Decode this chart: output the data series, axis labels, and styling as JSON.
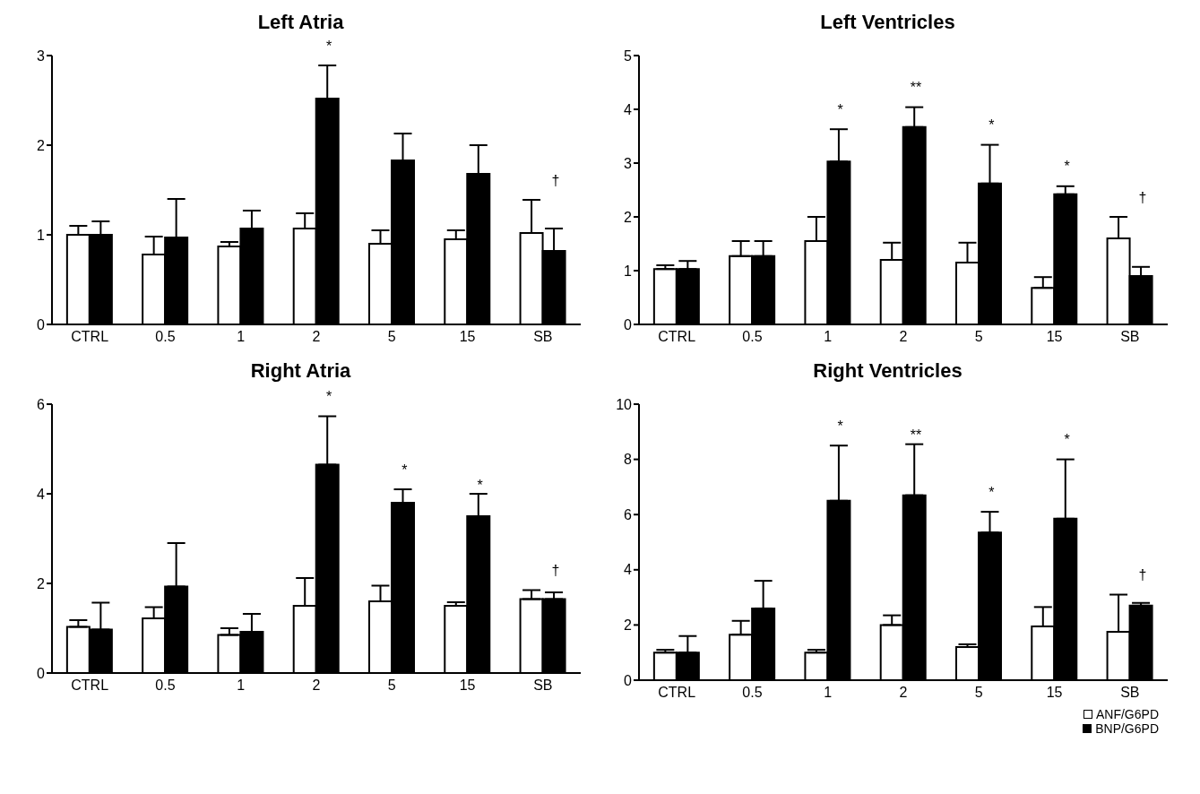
{
  "chart_data": [
    {
      "type": "bar",
      "title": "Left Atria",
      "categories": [
        "CTRL",
        "0.5",
        "1",
        "2",
        "5",
        "15",
        "SB"
      ],
      "ylim": [
        0,
        3
      ],
      "yticks": [
        0,
        1,
        2,
        3
      ],
      "grid": false,
      "series": [
        {
          "color": "#ffffff",
          "values": [
            1.0,
            0.78,
            0.87,
            1.07,
            0.9,
            0.95,
            1.02
          ],
          "errors": [
            [
              1.0,
              1.1
            ],
            [
              0.78,
              0.98
            ],
            [
              0.87,
              0.92
            ],
            [
              1.07,
              1.24
            ],
            [
              0.9,
              1.05
            ],
            [
              0.95,
              1.05
            ],
            [
              1.02,
              1.39
            ]
          ]
        },
        {
          "color": "#000000",
          "values": [
            1.0,
            0.97,
            1.07,
            2.52,
            1.83,
            1.68,
            0.82
          ],
          "errors": [
            [
              1.0,
              1.15
            ],
            [
              0.97,
              1.4
            ],
            [
              1.07,
              1.27
            ],
            [
              2.52,
              2.89
            ],
            [
              1.83,
              2.13
            ],
            [
              1.68,
              2.0
            ],
            [
              0.82,
              1.07
            ]
          ]
        }
      ],
      "annotations": [
        "*",
        "†"
      ]
    },
    {
      "type": "bar",
      "title": "Left Ventricles",
      "categories": [
        "CTRL",
        "0.5",
        "1",
        "2",
        "5",
        "15",
        "SB"
      ],
      "ylim": [
        0,
        5
      ],
      "yticks": [
        0,
        1,
        2,
        3,
        4,
        5
      ],
      "grid": false,
      "series": [
        {
          "color": "#ffffff",
          "values": [
            1.03,
            1.27,
            1.55,
            1.2,
            1.15,
            0.68,
            1.6
          ],
          "errors": [
            [
              1.03,
              1.1
            ],
            [
              1.27,
              1.55
            ],
            [
              1.55,
              2.0
            ],
            [
              1.2,
              1.52
            ],
            [
              1.15,
              1.52
            ],
            [
              0.68,
              0.88
            ],
            [
              1.6,
              2.0
            ]
          ]
        },
        {
          "color": "#000000",
          "values": [
            1.03,
            1.27,
            3.03,
            3.67,
            2.62,
            2.42,
            0.9
          ],
          "errors": [
            [
              1.03,
              1.18
            ],
            [
              1.27,
              1.55
            ],
            [
              3.03,
              3.63
            ],
            [
              3.67,
              4.04
            ],
            [
              2.62,
              3.34
            ],
            [
              2.42,
              2.57
            ],
            [
              0.9,
              1.07
            ]
          ]
        }
      ],
      "annotations": [
        "*",
        "**",
        "*",
        "*",
        "†"
      ]
    },
    {
      "type": "bar",
      "title": "Right Atria",
      "categories": [
        "CTRL",
        "0.5",
        "1",
        "2",
        "5",
        "15",
        "SB"
      ],
      "ylim": [
        0,
        6
      ],
      "yticks": [
        0,
        2,
        4,
        6
      ],
      "grid": false,
      "series": [
        {
          "color": "#ffffff",
          "values": [
            1.03,
            1.22,
            0.85,
            1.5,
            1.6,
            1.5,
            1.65
          ],
          "errors": [
            [
              1.03,
              1.18
            ],
            [
              1.22,
              1.47
            ],
            [
              0.85,
              1.0
            ],
            [
              1.5,
              2.12
            ],
            [
              1.6,
              1.95
            ],
            [
              1.5,
              1.58
            ],
            [
              1.65,
              1.85
            ]
          ]
        },
        {
          "color": "#000000",
          "values": [
            0.97,
            1.93,
            0.92,
            4.65,
            3.8,
            3.5,
            1.65
          ],
          "errors": [
            [
              0.97,
              1.57
            ],
            [
              1.93,
              2.9
            ],
            [
              0.92,
              1.32
            ],
            [
              4.65,
              5.73
            ],
            [
              3.8,
              4.1
            ],
            [
              3.5,
              4.0
            ],
            [
              1.65,
              1.8
            ]
          ]
        }
      ],
      "annotations": [
        "*",
        "*",
        "*",
        "†"
      ]
    },
    {
      "type": "bar",
      "title": "Right Ventricles",
      "categories": [
        "CTRL",
        "0.5",
        "1",
        "2",
        "5",
        "15",
        "SB"
      ],
      "ylim": [
        0,
        10
      ],
      "yticks": [
        0,
        2,
        4,
        6,
        8,
        10
      ],
      "grid": false,
      "legend": "bottom right",
      "series": [
        {
          "name": "ANF/G6PD",
          "color": "#ffffff",
          "values": [
            1.0,
            1.65,
            1.0,
            2.0,
            1.2,
            1.95,
            1.75
          ],
          "errors": [
            [
              1.0,
              1.1
            ],
            [
              1.65,
              2.15
            ],
            [
              1.0,
              1.1
            ],
            [
              2.0,
              2.35
            ],
            [
              1.2,
              1.3
            ],
            [
              1.95,
              2.65
            ],
            [
              1.75,
              3.1
            ]
          ]
        },
        {
          "name": "BNP/G6PD",
          "color": "#000000",
          "values": [
            1.0,
            2.6,
            6.5,
            6.7,
            5.35,
            5.85,
            2.7
          ],
          "errors": [
            [
              1.0,
              1.6
            ],
            [
              2.6,
              3.6
            ],
            [
              6.5,
              8.5
            ],
            [
              6.7,
              8.55
            ],
            [
              5.35,
              6.1
            ],
            [
              5.85,
              8.0
            ],
            [
              2.7,
              2.8
            ]
          ]
        }
      ],
      "annotations": [
        "*",
        "**",
        "*",
        "*",
        "†"
      ]
    }
  ]
}
